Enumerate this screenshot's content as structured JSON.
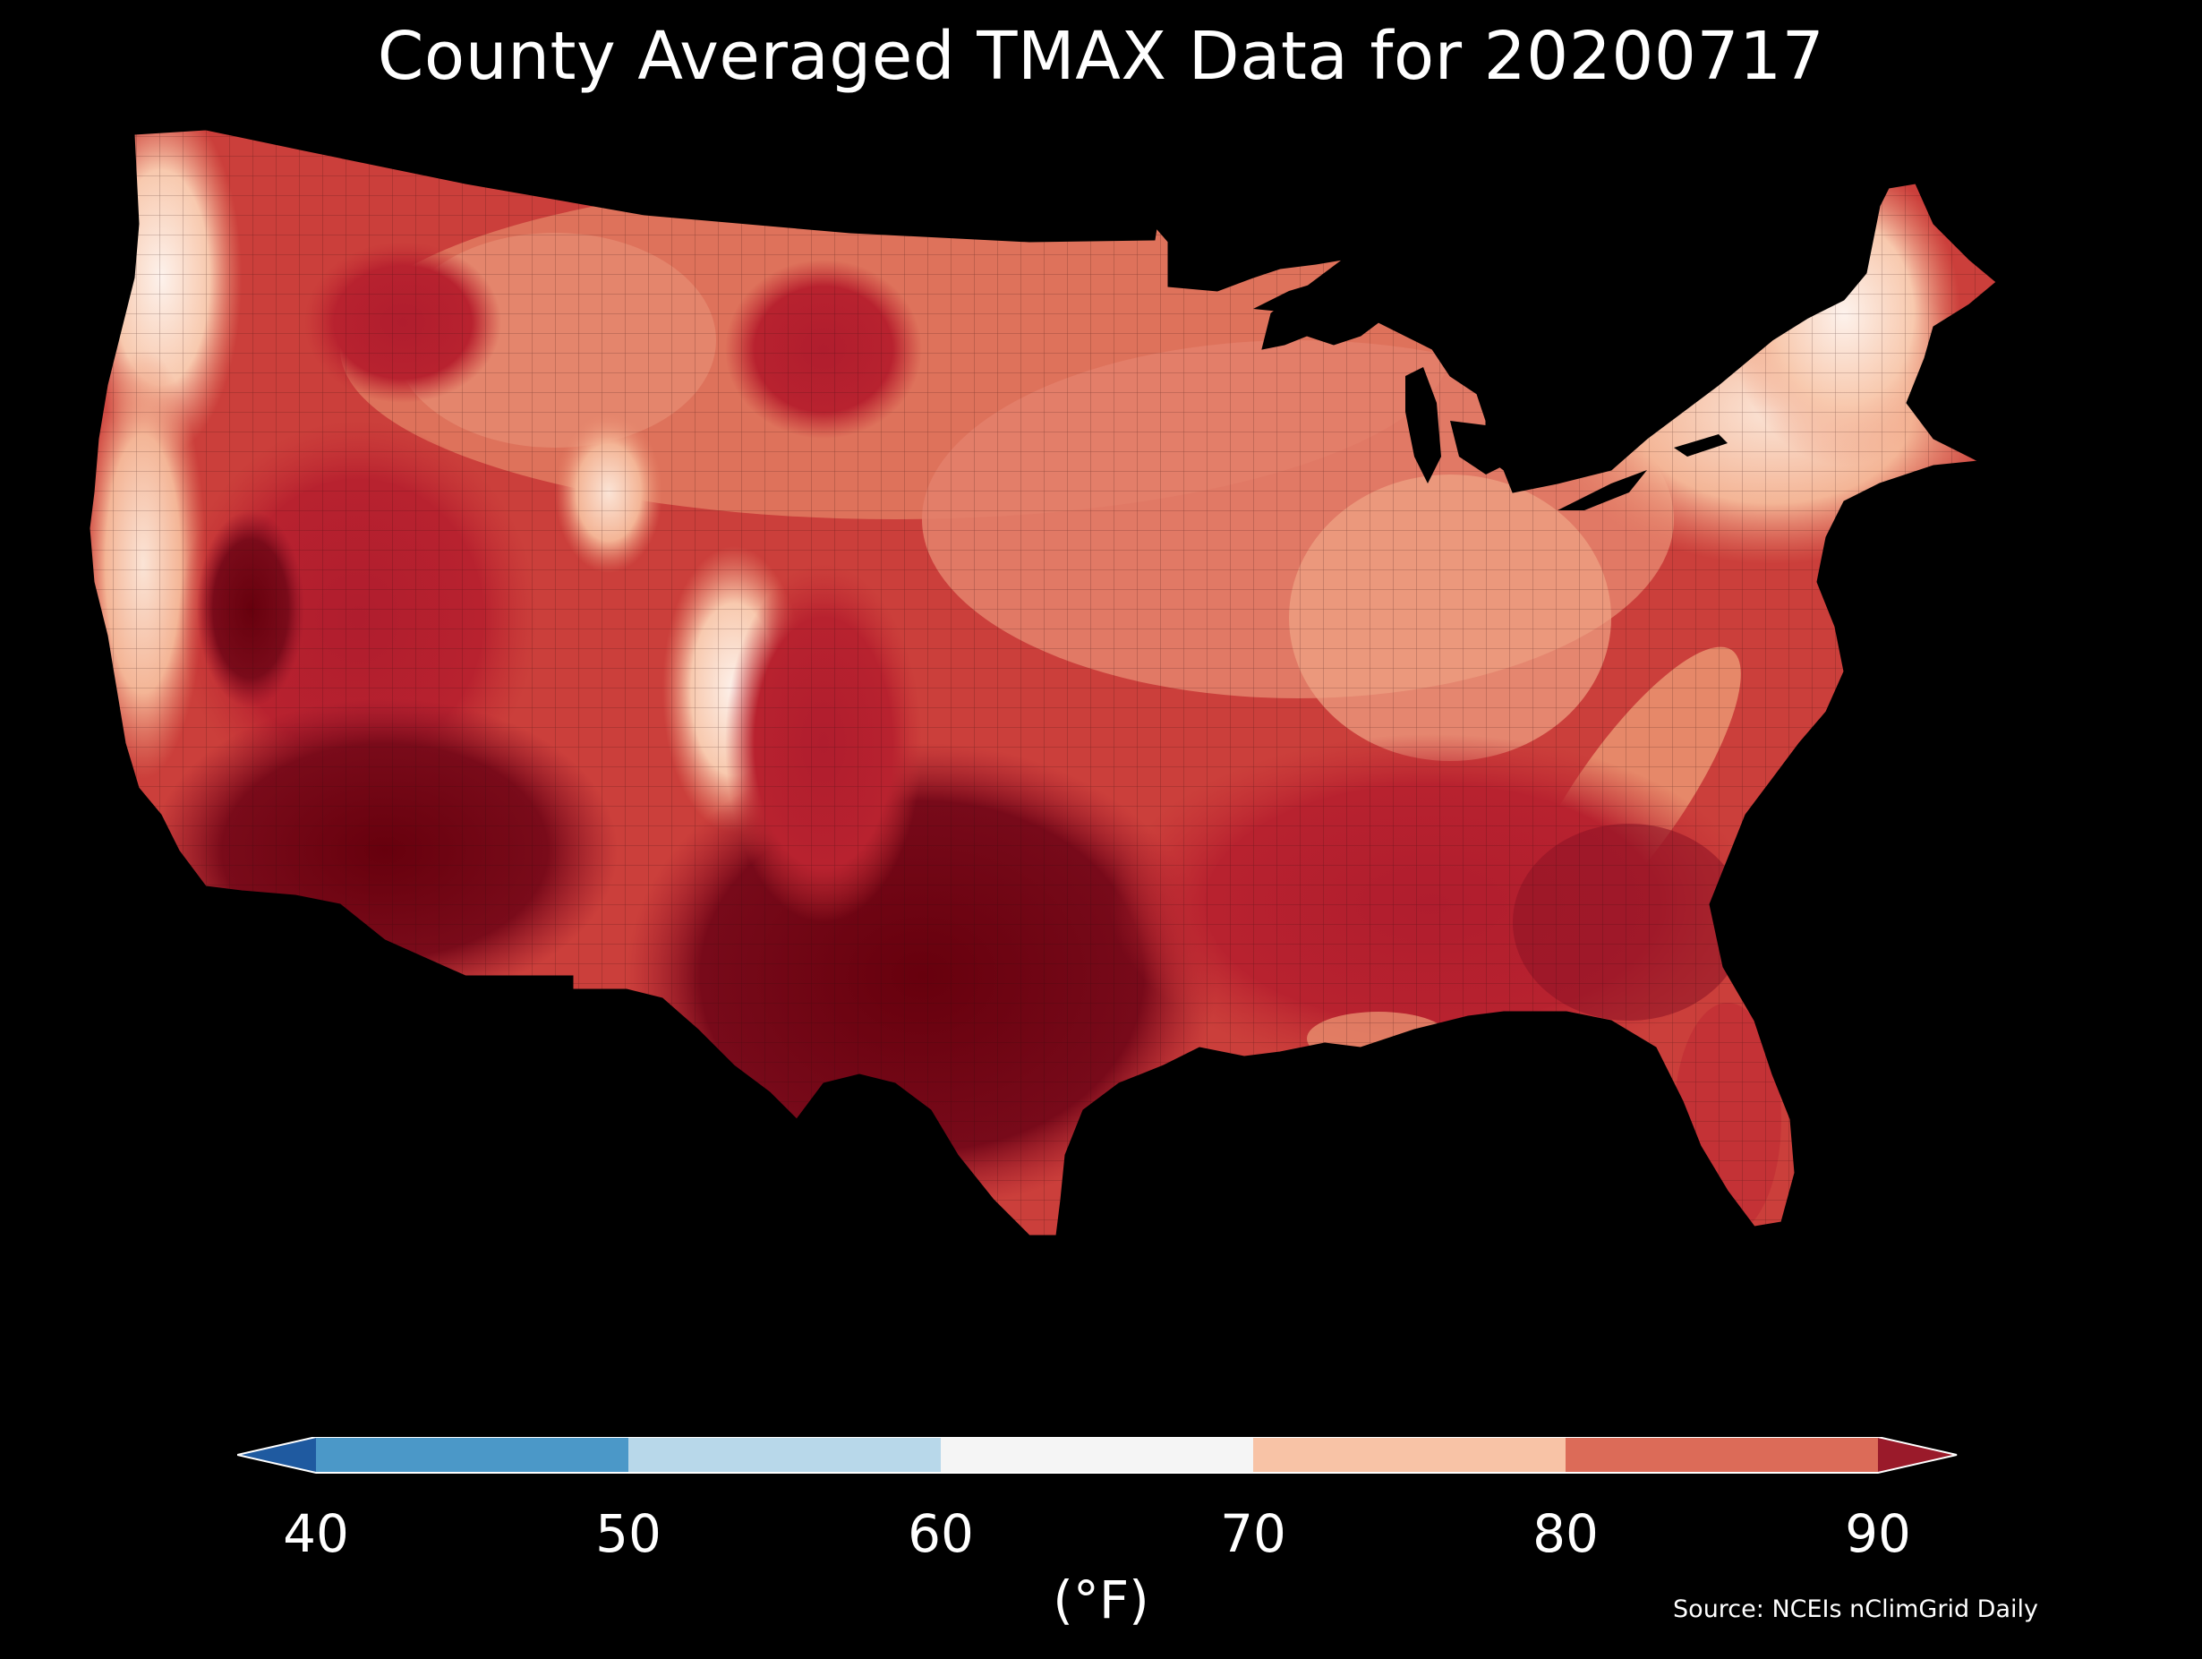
{
  "title": "County Averaged TMAX Data for 20200717",
  "source": "Source: NCEIs nClimGrid Daily",
  "colorbar": {
    "units_label": "(°F)",
    "ticks": [
      "40",
      "50",
      "60",
      "70",
      "80",
      "90"
    ],
    "bins": [
      {
        "range": "<40",
        "color": "#1f5aa0"
      },
      {
        "range": "40-50",
        "color": "#4b98c8"
      },
      {
        "range": "50-60",
        "color": "#b8d8ea"
      },
      {
        "range": "60-70",
        "color": "#f5f5f5"
      },
      {
        "range": "70-80",
        "color": "#f8c3a6"
      },
      {
        "range": "80-90",
        "color": "#dc6b58"
      },
      {
        "range": ">90",
        "color": "#9a1a2a"
      }
    ],
    "extend": "both",
    "outline_color": "#ffffff"
  },
  "map": {
    "region": "Contiguous United States",
    "unit": "county",
    "variable": "TMAX",
    "date": "20200717",
    "background_color": "#000000",
    "county_border_color": "#2a0a0c",
    "dominant_pattern": "Hottest (dark red, >90°F) in Southwest deserts, Texas, southern Plains and Southeast; cooler (light salmon to white, 60-80°F) along Pacific Northwest coast, central Rockies (Utah/Colorado high terrain), Great Lakes and Northeast; coastal California and New England near 60-70°F"
  }
}
